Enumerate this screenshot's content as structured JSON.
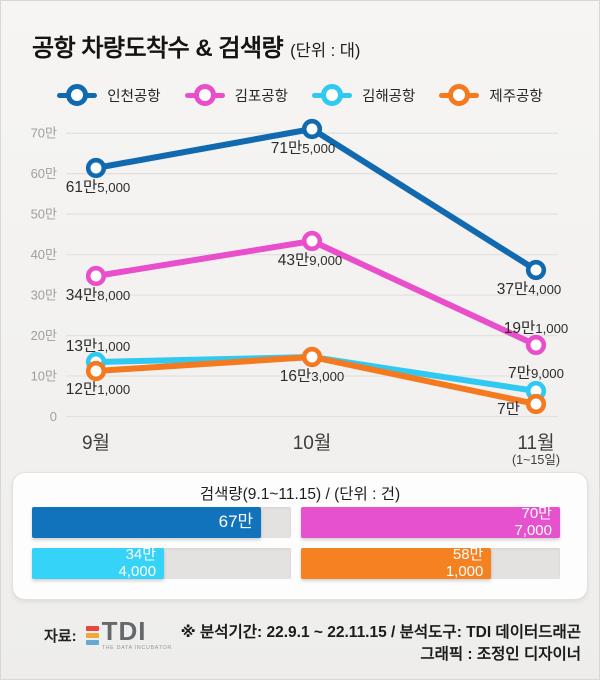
{
  "header": {
    "title": "공항 차량도착수 & 검색량",
    "unit": "(단위 : 대)"
  },
  "chart_data": {
    "type": "line",
    "title": "공항 차량도착수 & 검색량",
    "unit_label": "(단위 : 대)",
    "x_categories": [
      "9월",
      "10월",
      "11월"
    ],
    "x_sub_labels": [
      "",
      "",
      "(1~15일)"
    ],
    "ylabel": "",
    "ylim": [
      0,
      700000
    ],
    "grid": true,
    "legend_position": "top",
    "y_ticks": [
      {
        "v": 70,
        "label": "70만"
      },
      {
        "v": 60,
        "label": "60만"
      },
      {
        "v": 50,
        "label": "50만"
      },
      {
        "v": 40,
        "label": "40만"
      },
      {
        "v": 30,
        "label": "30만"
      },
      {
        "v": 20,
        "label": "20만"
      },
      {
        "v": 10,
        "label": "10만"
      },
      {
        "v": 0,
        "label": "0"
      }
    ],
    "series": [
      {
        "key": "incheon",
        "name": "인천공항",
        "color": "#1169b0",
        "values": [
          615000,
          715000,
          374000
        ],
        "point_labels": [
          [
            "61만",
            "5,000"
          ],
          [
            "71만",
            "5,000"
          ],
          [
            "37만",
            "4,000"
          ]
        ]
      },
      {
        "key": "gimpo",
        "name": "김포공항",
        "color": "#e94ecb",
        "values": [
          348000,
          439000,
          191000
        ],
        "point_labels": [
          [
            "34만",
            "8,000"
          ],
          [
            "43만",
            "9,000"
          ],
          [
            "19만",
            "1,000"
          ]
        ]
      },
      {
        "key": "gimhae",
        "name": "김해공항",
        "color": "#2fc9f1",
        "values": [
          131000,
          163000,
          79000
        ],
        "point_labels": [
          [
            "13만",
            "1,000"
          ],
          null,
          [
            "7만",
            "9,000"
          ]
        ]
      },
      {
        "key": "jeju",
        "name": "제주공항",
        "color": "#f4791f",
        "values": [
          121000,
          163000,
          70000
        ],
        "point_labels": [
          [
            "12만",
            "1,000"
          ],
          [
            "16만",
            "3,000"
          ],
          [
            "7만",
            ""
          ]
        ]
      }
    ]
  },
  "search_panel": {
    "title": "검색량(9.1~11.15) / (단위 : 건)",
    "bars": [
      {
        "name": "인천공항",
        "color": "#1173bb",
        "value": 670000,
        "value_lines": [
          "67만"
        ],
        "fill_pct": 88.5
      },
      {
        "name": "김포공항",
        "color": "#e651ce",
        "value": 707000,
        "value_lines": [
          "70만",
          "7,000"
        ],
        "fill_pct": 100
      },
      {
        "name": "김해공항",
        "color": "#35d3f7",
        "value": 344000,
        "value_lines": [
          "34만",
          "4,000"
        ],
        "fill_pct": 51
      },
      {
        "name": "제주공항",
        "color": "#f68121",
        "value": 581000,
        "value_lines": [
          "58만",
          "1,000"
        ],
        "fill_pct": 73.5
      }
    ]
  },
  "footer": {
    "source_label": "자료:",
    "logo": {
      "text": "TDI",
      "sub": "THE DATA INCUBATOR",
      "bar_colors": [
        "#e8473f",
        "#f0a838",
        "#64a8d8"
      ]
    },
    "note_line1": "※ 분석기간: 22.9.1 ~ 22.11.15 / 분석도구: TDI 데이터드래곤",
    "note_line2": "그래픽 : 조정인 디자이너"
  }
}
